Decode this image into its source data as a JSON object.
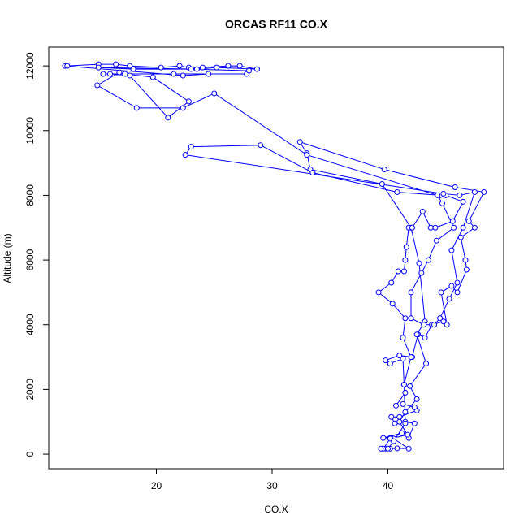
{
  "chart_data": {
    "type": "line",
    "title": "ORCAS RF11 CO.X",
    "xlabel": "CO.X",
    "ylabel": "Altitude (m)",
    "color": "#0000ff",
    "xlim": [
      10.7,
      50
    ],
    "ylim": [
      -450,
      12580
    ],
    "xticks": [
      20,
      30,
      40
    ],
    "yticks": [
      0,
      2000,
      4000,
      6000,
      8000,
      10000,
      12000
    ],
    "x": [
      39.5,
      39.8,
      40.2,
      40.8,
      41.8,
      40.5,
      40.2,
      39.6,
      41.2,
      41.8,
      42.3,
      41.5,
      40.6,
      40.3,
      41,
      42.5,
      42.3,
      41.3,
      40.7,
      41.5,
      41.4,
      41.3,
      40.2,
      39.8,
      41,
      42.1,
      42.6,
      43.2,
      43.8,
      44.8,
      45.1,
      44.6,
      45.5,
      46,
      46.8,
      46.7,
      46.3,
      47.5,
      47,
      48.3,
      45.8,
      39.7,
      32.4,
      33,
      33.3,
      39.5,
      42,
      42.7,
      43.2,
      42.5,
      43.3,
      41.9,
      42.5,
      41.5,
      41,
      41.7,
      40.2,
      39.6,
      39.4,
      40,
      40.5,
      41.5,
      41.4,
      42,
      41.3,
      41.5,
      40.4,
      39.2,
      40.3,
      40.9,
      41.4,
      41.5,
      41.6,
      41.8,
      42.1,
      43,
      43.7,
      44.1,
      45.6,
      46.5,
      45,
      44.5,
      40.8,
      33.5,
      29,
      23,
      22.5,
      44.8,
      46.2,
      47.5,
      46.5,
      45.5,
      46,
      45.3,
      44.5,
      44,
      43.1,
      42,
      42,
      42.9,
      43.5,
      44.2,
      45.7,
      44.7,
      44.3,
      33,
      25,
      22.3,
      18.3,
      14.9,
      16.8,
      17.3,
      19.7,
      22.8,
      21,
      17.7,
      16,
      15.4,
      21.5,
      27.8,
      24.5,
      22.3,
      12.1,
      12.3,
      15,
      16.5,
      17.7,
      20.4,
      22,
      22.8,
      24,
      26.2,
      27.2,
      28.7,
      25.2,
      23.5,
      15,
      18,
      23,
      28
    ],
    "values": [
      170,
      170,
      170,
      180,
      170,
      480,
      500,
      500,
      650,
      500,
      950,
      1000,
      950,
      1150,
      1150,
      1350,
      1450,
      1550,
      1500,
      1900,
      2150,
      2950,
      2800,
      2900,
      3050,
      3000,
      3700,
      3600,
      4000,
      4100,
      4000,
      5000,
      5200,
      5000,
      5700,
      6000,
      6700,
      7000,
      7200,
      8100,
      8250,
      8800,
      9650,
      9300,
      8800,
      8350,
      7000,
      5900,
      4100,
      3700,
      2800,
      2100,
      1700,
      1300,
      1000,
      600,
      480,
      170,
      170,
      170,
      400,
      950,
      2150,
      3000,
      3600,
      4200,
      4650,
      5000,
      5300,
      5650,
      5650,
      6000,
      6400,
      7000,
      7000,
      7500,
      7000,
      7000,
      7200,
      7800,
      8000,
      8000,
      8100,
      8700,
      9550,
      9500,
      9250,
      8050,
      8000,
      8100,
      7000,
      6300,
      5300,
      4800,
      4200,
      4000,
      4000,
      4200,
      5000,
      5600,
      6000,
      6600,
      7000,
      7750,
      8000,
      9250,
      11150,
      10700,
      10700,
      11400,
      11800,
      11750,
      11650,
      10900,
      10400,
      11700,
      11750,
      11750,
      11750,
      11750,
      11750,
      11700,
      12000,
      12000,
      12050,
      12050,
      12000,
      11950,
      12000,
      11950,
      11950,
      12000,
      12000,
      11900,
      11950,
      11900,
      11950,
      11900,
      11900,
      11850
    ]
  }
}
